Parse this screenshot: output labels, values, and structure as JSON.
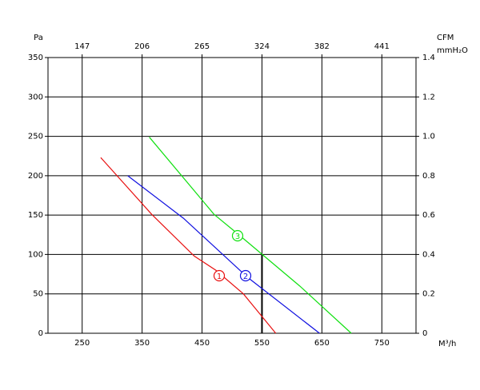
{
  "chart_data": {
    "type": "line",
    "y_label": "Pa",
    "x2_label": "CFM",
    "y2_label": "mmH₂O",
    "x_label": "M³/h",
    "xlim": [
      193,
      807
    ],
    "xticks": [
      250,
      350,
      450,
      550,
      650,
      750
    ],
    "x2ticks": [
      {
        "value": 250,
        "label": "147"
      },
      {
        "value": 350,
        "label": "206"
      },
      {
        "value": 450,
        "label": "265"
      },
      {
        "value": 550,
        "label": "324"
      },
      {
        "value": 650,
        "label": "382"
      },
      {
        "value": 750,
        "label": "441"
      }
    ],
    "ylim": [
      0,
      350
    ],
    "yticks": [
      0,
      50,
      100,
      150,
      200,
      250,
      300,
      350
    ],
    "y2lim": [
      0,
      1.4
    ],
    "y2ticks": [
      0,
      0.2,
      0.4,
      0.6,
      0.8,
      {
        "value": 1,
        "label": "1.0"
      },
      1.2,
      1.4
    ],
    "grid": true,
    "series": [
      {
        "name": "1",
        "color": "#e81010",
        "x": [
          281,
          366,
          437,
          473,
          519,
          573
        ],
        "values": [
          223,
          151,
          98,
          80,
          50,
          0
        ]
      },
      {
        "name": "2",
        "color": "#1010e0",
        "x": [
          326,
          419,
          526,
          646
        ],
        "values": [
          200,
          146,
          71,
          0
        ]
      },
      {
        "name": "3",
        "color": "#10e010",
        "x": [
          362,
          470,
          513,
          613,
          699
        ],
        "values": [
          249,
          151,
          124,
          60,
          0
        ]
      }
    ],
    "marker": {
      "x": 550,
      "y": 100
    }
  }
}
